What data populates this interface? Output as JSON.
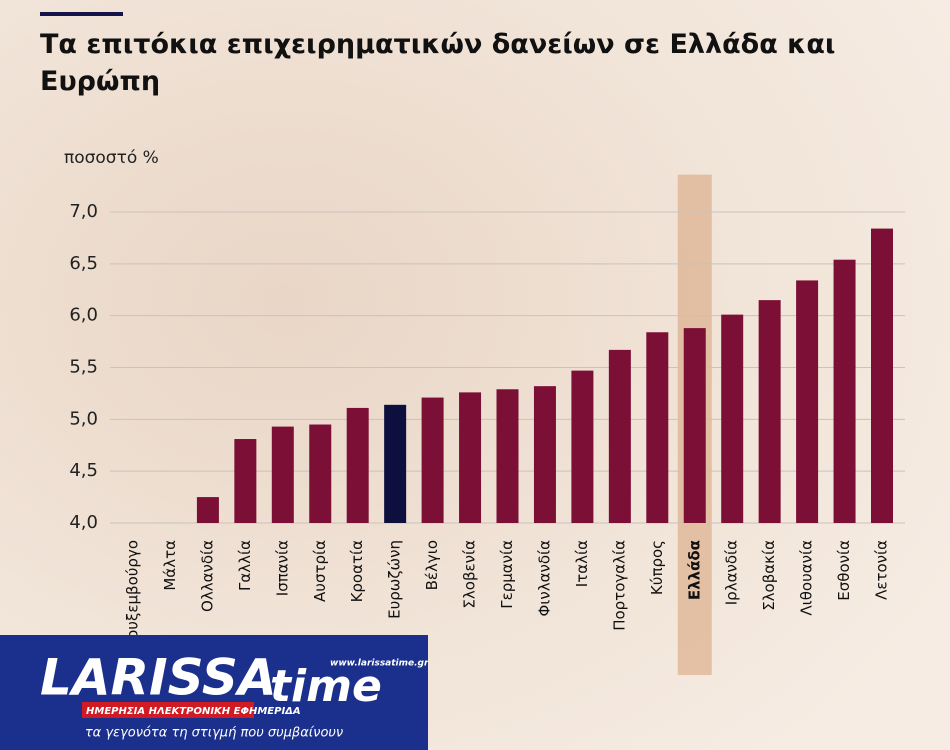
{
  "chart_data": {
    "type": "bar",
    "title": "Τα επιτόκια επιχειρηματικών δανείων σε Ελλάδα και Ευρώπη",
    "y_label": "ποσοστό %",
    "categories": [
      "Λουξεμβούργο",
      "Μάλτα",
      "Ολλανδία",
      "Γαλλία",
      "Ισπανία",
      "Αυστρία",
      "Κροατία",
      "Ευρωζώνη",
      "Βέλγιο",
      "Σλοβενία",
      "Γερμανία",
      "Φινλανδία",
      "Ιταλία",
      "Πορτογαλία",
      "Κύπρος",
      "Ελλάδα",
      "Ιρλανδία",
      "Σλοβακία",
      "Λιθουανία",
      "Εσθονία",
      "Λετονία"
    ],
    "values": [
      null,
      null,
      4.25,
      4.81,
      4.93,
      4.95,
      5.11,
      5.14,
      5.21,
      5.26,
      5.29,
      5.32,
      5.47,
      5.67,
      5.84,
      5.88,
      6.01,
      6.15,
      6.34,
      6.54,
      6.84
    ],
    "color": "#7c0f36",
    "colors": {
      "7": "#0d0f3f"
    },
    "highlight": 15,
    "highlight_color": "#d9a57f",
    "ylim": [
      4.0,
      7.1
    ],
    "yticks": [
      {
        "value": 4.0,
        "label": "4,0"
      },
      {
        "value": 4.5,
        "label": "4,5"
      },
      {
        "value": 5.0,
        "label": "5,0"
      },
      {
        "value": 5.5,
        "label": "5,5"
      },
      {
        "value": 6.0,
        "label": "6,0"
      },
      {
        "value": 6.5,
        "label": "6,5"
      },
      {
        "value": 7.0,
        "label": "7,0"
      }
    ],
    "grid": true
  },
  "logo": {
    "name": "LARISSA",
    "name2": "time",
    "url": "www.larissatime.gr",
    "tagline": "ΗΜΕΡΗΣΙΑ ΗΛΕΚΤΡΟΝΙΚΗ ΕΦΗΜΕΡΙΔΑ",
    "slogan": "τα γεγονότα τη στιγμή που συμβαίνουν"
  }
}
